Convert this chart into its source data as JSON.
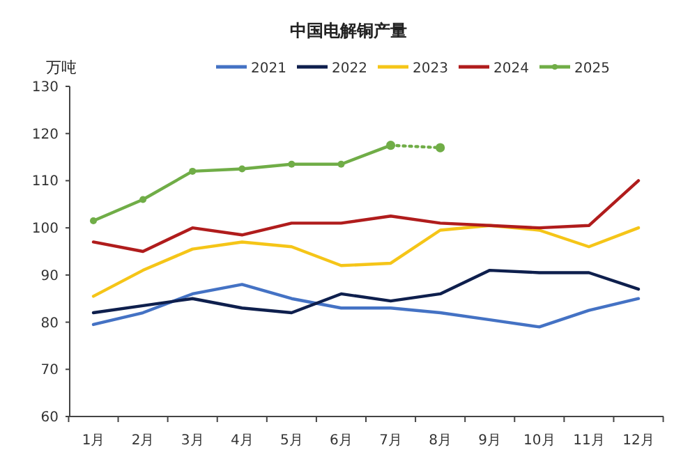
{
  "chart_data": {
    "type": "line",
    "title": "中国电解铜产量",
    "ylabel": "万吨",
    "categories": [
      "1月",
      "2月",
      "3月",
      "4月",
      "5月",
      "6月",
      "7月",
      "8月",
      "9月",
      "10月",
      "11月",
      "12月"
    ],
    "ylim": [
      60,
      130
    ],
    "yticks": [
      60,
      70,
      80,
      90,
      100,
      110,
      120,
      130
    ],
    "grid": false,
    "legend": "top",
    "series": [
      {
        "name": "2021",
        "color": "#4472c4",
        "values": [
          79.5,
          82,
          86,
          88,
          85,
          83,
          83,
          82,
          80.5,
          79,
          82.5,
          85
        ]
      },
      {
        "name": "2022",
        "color": "#0e1f4d",
        "values": [
          82,
          83.5,
          85,
          83,
          82,
          86,
          84.5,
          86,
          91,
          90.5,
          90.5,
          87
        ]
      },
      {
        "name": "2023",
        "color": "#f5c518",
        "values": [
          85.5,
          91,
          95.5,
          97,
          96,
          92,
          92.5,
          99.5,
          100.5,
          99.5,
          96,
          100
        ]
      },
      {
        "name": "2024",
        "color": "#b01c1c",
        "values": [
          97,
          95,
          100,
          98.5,
          101,
          101,
          102.5,
          101,
          100.5,
          100,
          100.5,
          110
        ]
      },
      {
        "name": "2025",
        "color": "#70ad47",
        "marker": "circle",
        "values": [
          101.5,
          106,
          112,
          112.5,
          113.5,
          113.5,
          117.5,
          null,
          null,
          null,
          null,
          null
        ]
      },
      {
        "color": "#70ad47",
        "marker": "circle",
        "line_style": "dotted",
        "values": [
          null,
          null,
          null,
          null,
          null,
          null,
          117.5,
          117,
          null,
          null,
          null,
          null
        ]
      }
    ]
  }
}
